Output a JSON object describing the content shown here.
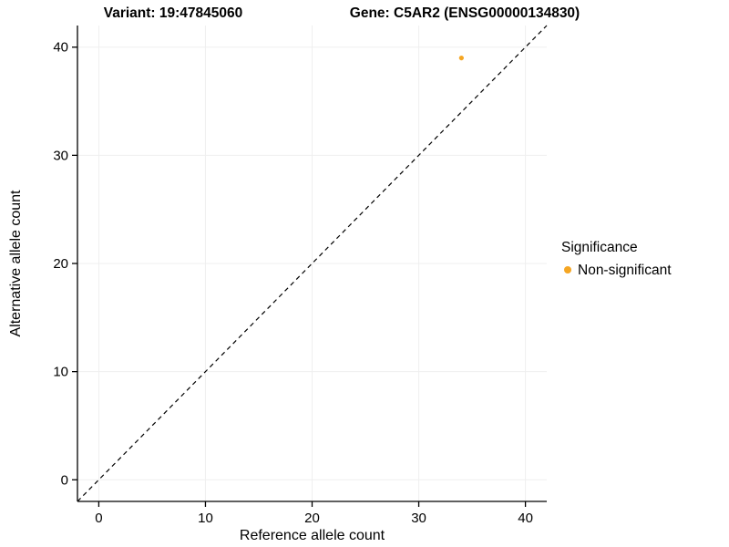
{
  "titles": {
    "variant": "Variant: 19:47845060",
    "gene": "Gene: C5AR2 (ENSG00000134830)"
  },
  "legend": {
    "title": "Significance",
    "items": [
      {
        "label": "Non-significant",
        "color": "#F5A623"
      }
    ]
  },
  "colors": {
    "point": "#F5A623",
    "axis": "#000000",
    "grid": "#EFEFEF",
    "background": "#FFFFFF",
    "diagonal": "#000000"
  },
  "chart_data": {
    "type": "scatter",
    "title": "Variant: 19:47845060   Gene: C5AR2 (ENSG00000134830)",
    "xlabel": "Reference allele count",
    "ylabel": "Alternative allele count",
    "xlim": [
      -2,
      42
    ],
    "ylim": [
      -2,
      42
    ],
    "x_ticks": [
      0,
      10,
      20,
      30,
      40
    ],
    "y_ticks": [
      0,
      10,
      20,
      30,
      40
    ],
    "grid": true,
    "diagonal_identity_line": {
      "style": "dashed",
      "from": [
        -2,
        -2
      ],
      "to": [
        42,
        42
      ]
    },
    "series": [
      {
        "name": "Non-significant",
        "color": "#F5A623",
        "points": [
          {
            "x": 34,
            "y": 39
          }
        ]
      }
    ],
    "legend_position": "right"
  }
}
